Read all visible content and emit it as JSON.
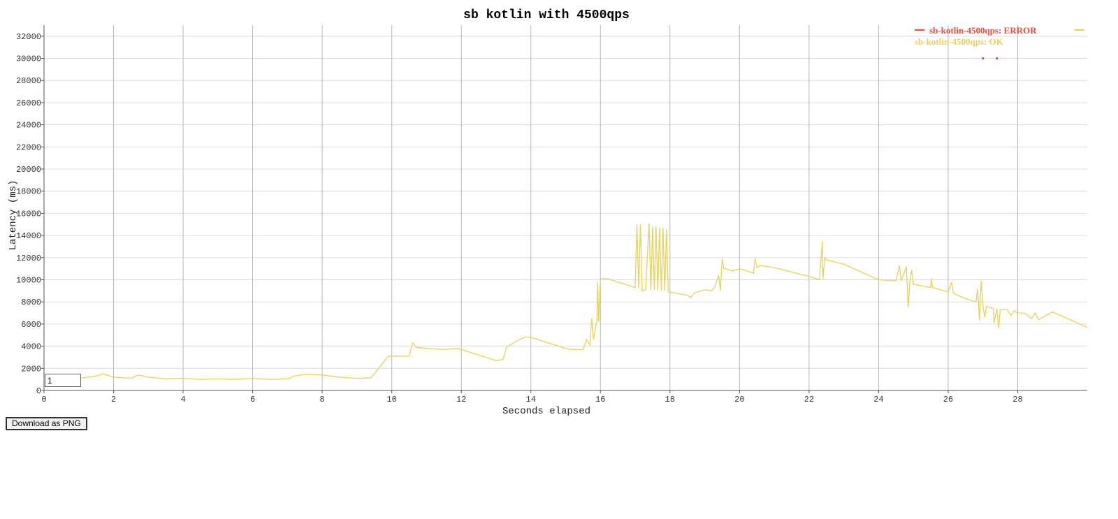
{
  "download_button": {
    "label": "Download as PNG"
  },
  "smoothing_input": {
    "value": "1"
  },
  "chart_data": {
    "type": "line",
    "title": "sb kotlin with 4500qps",
    "xlabel": "Seconds elapsed",
    "ylabel": "Latency (ms)",
    "xlim": [
      0,
      30
    ],
    "ylim": [
      0,
      33000
    ],
    "x_ticks": [
      0,
      2,
      4,
      6,
      8,
      10,
      12,
      14,
      16,
      18,
      20,
      22,
      24,
      26,
      28
    ],
    "y_ticks": [
      0,
      2000,
      4000,
      6000,
      8000,
      10000,
      12000,
      14000,
      16000,
      18000,
      20000,
      22000,
      24000,
      26000,
      28000,
      30000,
      32000
    ],
    "grid": {
      "vertical": true,
      "horizontal": true
    },
    "legend_position": "top-right",
    "series": [
      {
        "name": "sb-kotlin-4500qps: ERROR",
        "color": "#ef4a3c",
        "x": [
          27.0,
          27.4
        ],
        "y": [
          30000,
          30000
        ]
      },
      {
        "name": "sb-kotlin-4500qps: OK",
        "color": "#e5d35a",
        "x": [
          0.0,
          0.5,
          1.0,
          1.5,
          1.7,
          2.0,
          2.5,
          2.7,
          3.0,
          3.5,
          4.0,
          4.5,
          5.0,
          5.5,
          6.0,
          6.5,
          7.0,
          7.2,
          7.5,
          8.0,
          8.5,
          9.0,
          9.4,
          9.5,
          9.7,
          9.8,
          9.9,
          10.0,
          10.3,
          10.5,
          10.6,
          10.7,
          11.0,
          11.5,
          11.9,
          12.0,
          12.5,
          13.0,
          13.2,
          13.3,
          13.5,
          13.8,
          14.0,
          14.5,
          15.0,
          15.2,
          15.5,
          15.6,
          15.7,
          15.75,
          15.8,
          15.9,
          15.92,
          15.95,
          16.0,
          16.2,
          16.5,
          17.0,
          17.05,
          17.1,
          17.15,
          17.2,
          17.3,
          17.4,
          17.45,
          17.5,
          17.55,
          17.6,
          17.65,
          17.7,
          17.75,
          17.8,
          17.85,
          17.9,
          17.95,
          18.0,
          18.5,
          18.6,
          18.7,
          19.0,
          19.2,
          19.3,
          19.4,
          19.45,
          19.5,
          19.55,
          19.6,
          19.8,
          20.0,
          20.2,
          20.4,
          20.45,
          20.5,
          20.6,
          21.0,
          21.5,
          22.0,
          22.3,
          22.38,
          22.4,
          22.45,
          22.5,
          23.0,
          24.0,
          24.5,
          24.6,
          24.65,
          24.8,
          24.85,
          24.9,
          24.95,
          25.0,
          25.5,
          25.52,
          25.55,
          26.0,
          26.1,
          26.15,
          26.2,
          26.5,
          26.8,
          26.85,
          26.9,
          26.95,
          27.0,
          27.05,
          27.1,
          27.3,
          27.32,
          27.4,
          27.45,
          27.5,
          27.7,
          27.8,
          27.9,
          28.0,
          28.2,
          28.4,
          28.5,
          28.6,
          29.0,
          29.5,
          30.0
        ],
        "y": [
          1000,
          800,
          1100,
          1300,
          1500,
          1200,
          1100,
          1400,
          1200,
          1050,
          1100,
          1000,
          1050,
          1000,
          1100,
          1000,
          1050,
          1300,
          1450,
          1400,
          1200,
          1100,
          1150,
          1500,
          2300,
          2700,
          3100,
          3100,
          3100,
          3100,
          4300,
          3900,
          3800,
          3700,
          3800,
          3700,
          3200,
          2700,
          2800,
          3900,
          4300,
          4800,
          4800,
          4300,
          3800,
          3700,
          3700,
          4600,
          4100,
          6500,
          4600,
          6400,
          9800,
          6200,
          10100,
          10100,
          9800,
          9300,
          15000,
          9200,
          15000,
          9000,
          9100,
          15100,
          9000,
          14800,
          9100,
          14800,
          9000,
          14700,
          9000,
          14700,
          9000,
          14600,
          8900,
          8900,
          8600,
          8400,
          8800,
          9100,
          9000,
          9400,
          10400,
          9000,
          11900,
          11000,
          11000,
          10800,
          11000,
          10800,
          10600,
          11900,
          11100,
          11300,
          11100,
          10700,
          10300,
          10000,
          13500,
          10100,
          12000,
          11800,
          11400,
          10000,
          9900,
          11300,
          9900,
          11200,
          7500,
          9900,
          10900,
          9600,
          9300,
          10100,
          9300,
          8900,
          9800,
          8800,
          8700,
          8300,
          8000,
          9200,
          6300,
          9900,
          7700,
          6600,
          7600,
          7400,
          6100,
          7400,
          5600,
          7300,
          7300,
          6800,
          7200,
          7000,
          7000,
          6500,
          7000,
          6400,
          7100,
          6400,
          5700
        ]
      }
    ]
  }
}
